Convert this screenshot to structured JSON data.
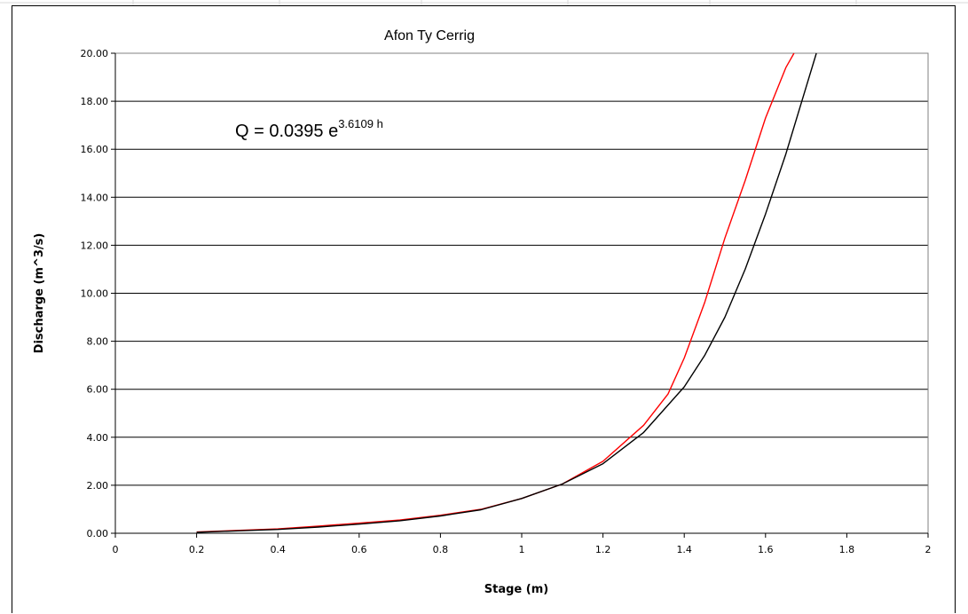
{
  "chart_data": {
    "type": "line",
    "title": "Afon Ty Cerrig",
    "xlabel": "Stage (m)",
    "ylabel": "Discharge (m^3/s)",
    "xlim": [
      0,
      2
    ],
    "ylim": [
      0,
      20
    ],
    "x_ticks": [
      "0",
      "0.2",
      "0.4",
      "0.6",
      "0.8",
      "1",
      "1.2",
      "1.4",
      "1.6",
      "1.8",
      "2"
    ],
    "y_ticks": [
      "0.00",
      "2.00",
      "4.00",
      "6.00",
      "8.00",
      "10.00",
      "12.00",
      "14.00",
      "16.00",
      "18.00",
      "20.00"
    ],
    "grid": "horizontal",
    "annotation": {
      "base": "Q = 0.0395 e",
      "exponent": "3.6109 h"
    },
    "series": [
      {
        "color": "#ff0000",
        "x": [
          0.2,
          0.3,
          0.4,
          0.5,
          0.6,
          0.7,
          0.8,
          0.9,
          1.0,
          1.1,
          1.2,
          1.3,
          1.36,
          1.4,
          1.45,
          1.5,
          1.55,
          1.6,
          1.65,
          1.67
        ],
        "y": [
          0.05,
          0.12,
          0.18,
          0.3,
          0.42,
          0.55,
          0.75,
          1.0,
          1.45,
          2.05,
          3.0,
          4.5,
          5.8,
          7.3,
          9.6,
          12.3,
          14.7,
          17.3,
          19.4,
          20.0
        ]
      },
      {
        "color": "#000000",
        "x": [
          0.2,
          0.3,
          0.4,
          0.5,
          0.6,
          0.7,
          0.8,
          0.9,
          1.0,
          1.1,
          1.2,
          1.3,
          1.4,
          1.45,
          1.5,
          1.55,
          1.6,
          1.65,
          1.7,
          1.725
        ],
        "y": [
          0.04,
          0.1,
          0.16,
          0.26,
          0.38,
          0.52,
          0.72,
          0.98,
          1.45,
          2.05,
          2.9,
          4.2,
          6.1,
          7.4,
          9.0,
          11.0,
          13.3,
          15.8,
          18.6,
          20.0
        ]
      }
    ]
  }
}
